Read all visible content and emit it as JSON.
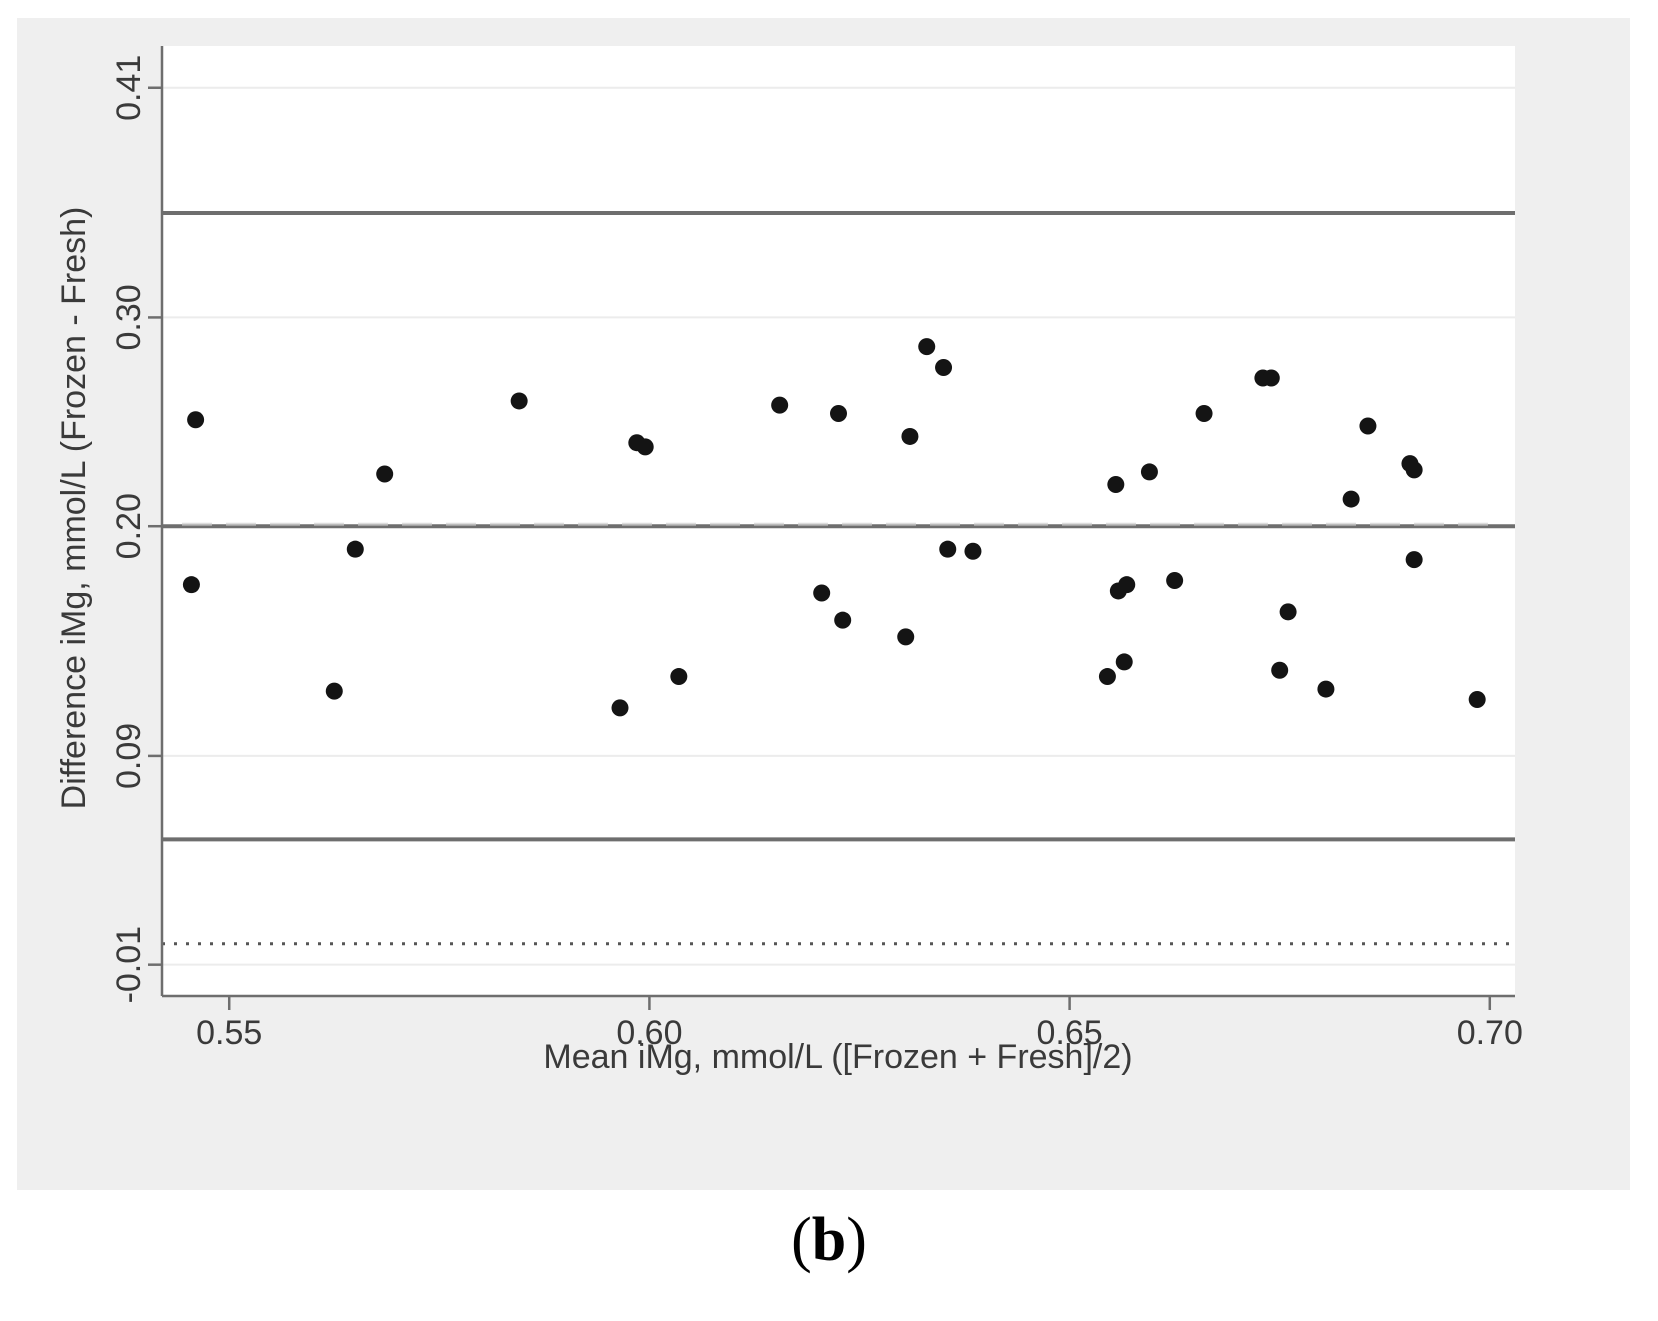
{
  "panel_label": {
    "open": "(",
    "letter": "b",
    "close": ")"
  },
  "colors": {
    "frame_bg": "#efefef",
    "plot_bg": "#ffffff",
    "line": "#6e6e6e",
    "point": "#141414",
    "grid": "#ececec",
    "mean_dash": "#cfcfcf"
  },
  "chart_data": {
    "type": "scatter",
    "xlabel": "Mean iMg, mmol/L ([Frozen + Fresh]/2)",
    "ylabel": "Difference iMg, mmol/L (Frozen - Fresh)",
    "xlim": [
      0.542,
      0.703
    ],
    "ylim": [
      -0.025,
      0.43
    ],
    "x_ticks": [
      0.55,
      0.6,
      0.65,
      0.7
    ],
    "x_tick_labels": [
      "0.55",
      "0.60",
      "0.65",
      "0.70"
    ],
    "y_ticks": [
      -0.01,
      0.09,
      0.2,
      0.3,
      0.41
    ],
    "y_tick_labels": [
      "-0.01",
      "0.09",
      "0.20",
      "0.30",
      "0.41"
    ],
    "grid": true,
    "reference_lines": [
      {
        "kind": "upper-limit-of-agreement",
        "y": 0.35,
        "style": "solid"
      },
      {
        "kind": "mean-difference",
        "y": 0.2,
        "style": "solid"
      },
      {
        "kind": "lower-limit-of-agreement",
        "y": 0.05,
        "style": "solid"
      },
      {
        "kind": "zero",
        "y": 0.0,
        "style": "dotted"
      }
    ],
    "points": [
      {
        "x": 0.5455,
        "y": 0.172
      },
      {
        "x": 0.546,
        "y": 0.251
      },
      {
        "x": 0.5625,
        "y": 0.121
      },
      {
        "x": 0.565,
        "y": 0.189
      },
      {
        "x": 0.5685,
        "y": 0.225
      },
      {
        "x": 0.5845,
        "y": 0.26
      },
      {
        "x": 0.5965,
        "y": 0.113
      },
      {
        "x": 0.5985,
        "y": 0.24
      },
      {
        "x": 0.5995,
        "y": 0.238
      },
      {
        "x": 0.6035,
        "y": 0.128
      },
      {
        "x": 0.6155,
        "y": 0.258
      },
      {
        "x": 0.6205,
        "y": 0.168
      },
      {
        "x": 0.6225,
        "y": 0.254
      },
      {
        "x": 0.623,
        "y": 0.155
      },
      {
        "x": 0.6305,
        "y": 0.147
      },
      {
        "x": 0.631,
        "y": 0.243
      },
      {
        "x": 0.633,
        "y": 0.286
      },
      {
        "x": 0.635,
        "y": 0.276
      },
      {
        "x": 0.6355,
        "y": 0.189
      },
      {
        "x": 0.6385,
        "y": 0.188
      },
      {
        "x": 0.6545,
        "y": 0.128
      },
      {
        "x": 0.6555,
        "y": 0.22
      },
      {
        "x": 0.6558,
        "y": 0.169
      },
      {
        "x": 0.6565,
        "y": 0.135
      },
      {
        "x": 0.6568,
        "y": 0.172
      },
      {
        "x": 0.6595,
        "y": 0.226
      },
      {
        "x": 0.6625,
        "y": 0.174
      },
      {
        "x": 0.666,
        "y": 0.254
      },
      {
        "x": 0.673,
        "y": 0.271
      },
      {
        "x": 0.674,
        "y": 0.271
      },
      {
        "x": 0.675,
        "y": 0.131
      },
      {
        "x": 0.676,
        "y": 0.159
      },
      {
        "x": 0.6805,
        "y": 0.122
      },
      {
        "x": 0.6835,
        "y": 0.213
      },
      {
        "x": 0.6855,
        "y": 0.248
      },
      {
        "x": 0.6905,
        "y": 0.23
      },
      {
        "x": 0.691,
        "y": 0.227
      },
      {
        "x": 0.691,
        "y": 0.184
      },
      {
        "x": 0.6985,
        "y": 0.117
      }
    ]
  }
}
